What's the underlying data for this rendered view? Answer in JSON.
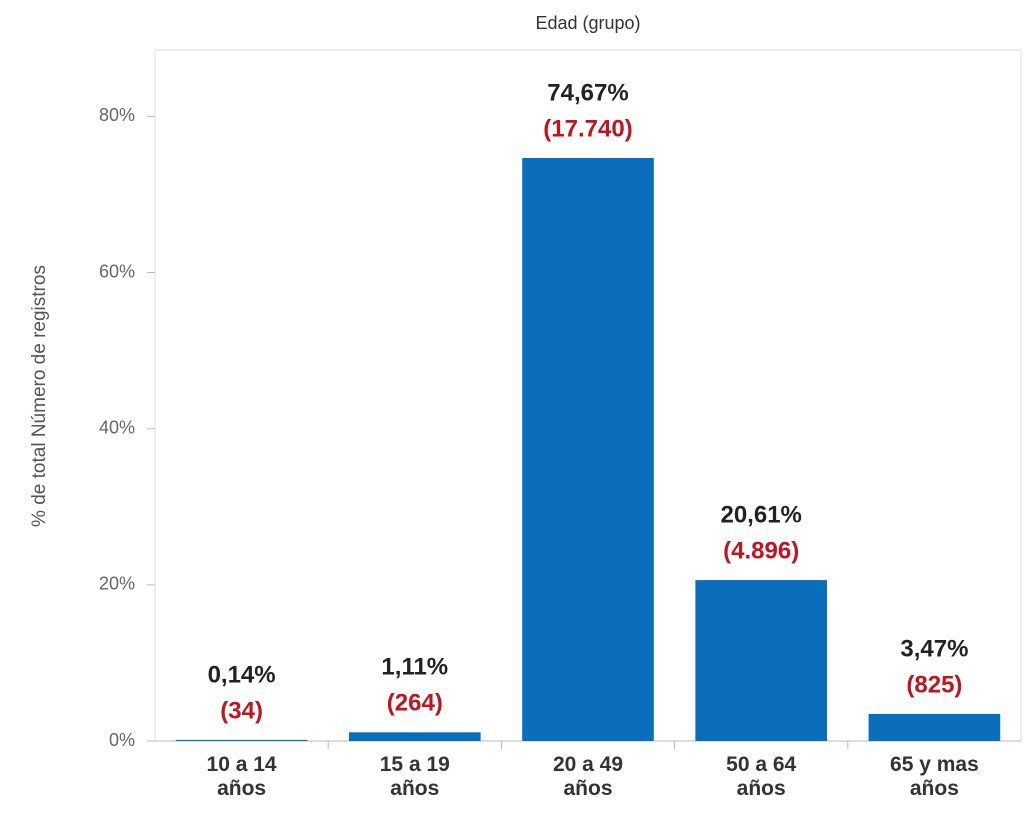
{
  "chart_data": {
    "type": "bar",
    "title": "Edad (grupo)",
    "y_label": "% de total Número de registros",
    "categories": [
      "10 a 14 años",
      "15 a 19 años",
      "20 a 49 años",
      "50 a 64 años",
      "65 y mas años"
    ],
    "values": [
      0.14,
      1.11,
      74.67,
      20.61,
      3.47
    ],
    "value_labels": [
      "0,14%",
      "1,11%",
      "74,67%",
      "20,61%",
      "3,47%"
    ],
    "counts": {
      "values": [
        34,
        264,
        17740,
        4896,
        825
      ],
      "value_labels": [
        "(34)",
        "(264)",
        "(17.740)",
        "(4.896)",
        "(825)"
      ],
      "color": "#c0141e"
    },
    "color": "#0a6ebd",
    "ylim": [
      0,
      88.5
    ],
    "yticks": [
      {
        "value": 0,
        "label": "0%"
      },
      {
        "value": 20,
        "label": "20%"
      },
      {
        "value": 40,
        "label": "40%"
      },
      {
        "value": 60,
        "label": "60%"
      },
      {
        "value": 80,
        "label": "80%"
      }
    ],
    "grid": false
  }
}
